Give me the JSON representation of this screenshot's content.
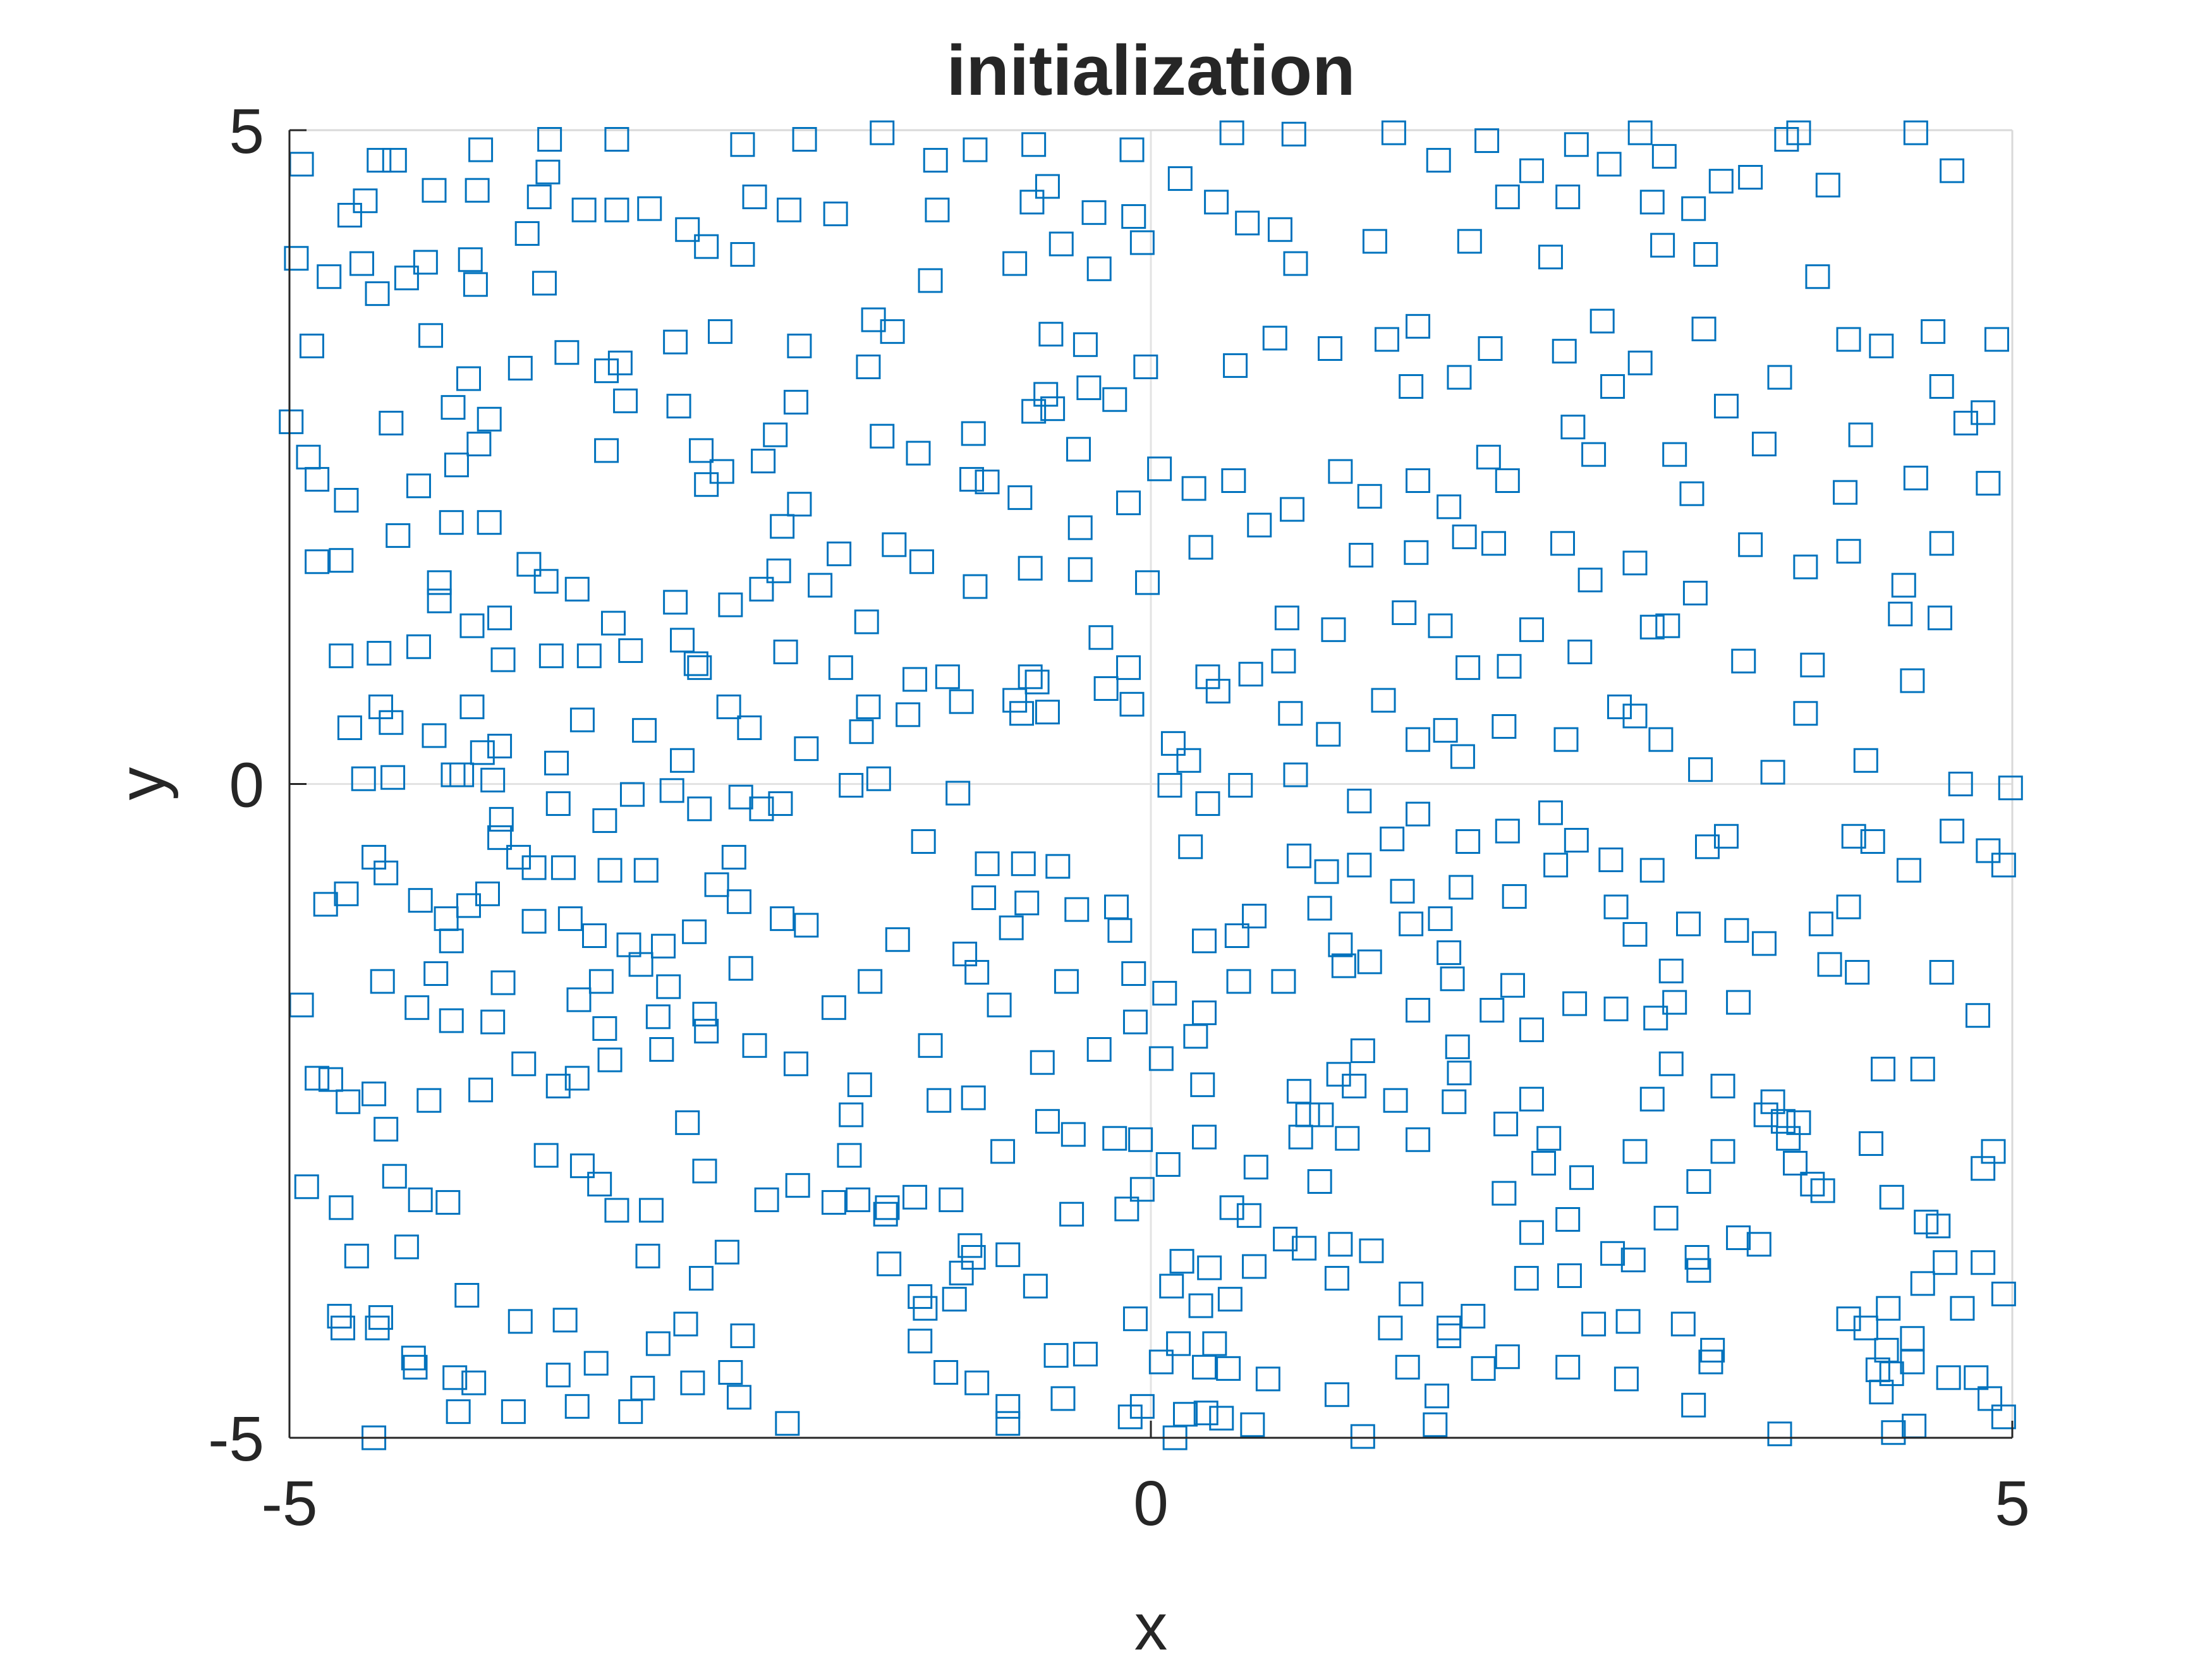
{
  "chart_data": {
    "type": "scatter",
    "title": "initialization",
    "x_label": "x",
    "y_label": "y",
    "color": "#0072BD",
    "marker": "square",
    "grid": true,
    "xlim": [
      -5,
      5
    ],
    "ylim": [
      -5,
      5
    ],
    "xticks": [
      -5,
      0,
      5
    ],
    "yticks": [
      -5,
      0,
      5
    ],
    "x": [
      -4.93,
      -4.48,
      -4.39,
      -3.89,
      -3.49,
      -3.1,
      -2.37,
      -2.01,
      -1.56,
      -1.25,
      -1.02,
      -0.68,
      -0.11,
      0.47,
      0.83,
      1.41,
      1.67,
      1.95,
      2.21,
      2.47,
      2.84,
      2.98,
      3.69,
      3.76,
      4.44,
      4.65,
      3.93,
      3.48,
      3.31,
      3.15,
      2.91,
      2.66,
      2.42,
      2.07,
      1.85,
      2.32,
      2.97,
      3.22,
      1.3,
      0.84,
      0.38,
      0.56,
      0.75,
      0.17,
      -0.1,
      -0.33,
      -0.6,
      -0.69,
      -0.79,
      -0.52,
      -0.3,
      -0.05,
      -1.24,
      -1.28,
      -1.83,
      -2.1,
      -2.3,
      -2.58,
      -2.37,
      -2.69,
      -2.91,
      -3.1,
      -3.29,
      -3.5,
      -3.55,
      -3.91,
      -4.16,
      -4.56,
      -4.65,
      -4.96,
      -4.77,
      -4.58,
      -4.32,
      -4.49,
      -4.21,
      -3.95,
      -3.92,
      -3.62,
      -3.52,
      -4.87,
      -4.99,
      -4.18,
      -3.96,
      -3.66,
      -3.39,
      -3.16,
      -3.08,
      -3.05,
      -2.76,
      -2.5,
      -2.04,
      -1.61,
      -1.5,
      -1.64,
      -2.06,
      -2.18,
      -2.74,
      -3.16,
      -3.84,
      -3.9,
      -4.05,
      -4.41,
      -4.89,
      -4.84,
      -4.67,
      -4.25,
      -4.03,
      -2.61,
      -2.49,
      -2.58,
      -2.25,
      -1.56,
      -1.35,
      -1.03,
      -1.04,
      -0.95,
      -0.76,
      -0.58,
      -0.38,
      -0.68,
      -0.57,
      -0.42,
      -0.61,
      -0.36,
      -0.21,
      -0.03,
      -0.13,
      0.05,
      0.25,
      0.48,
      0.49,
      0.72,
      1.04,
      1.37,
      1.51,
      1.55,
      1.79,
      1.97,
      2.4,
      2.62,
      2.68,
      2.84,
      3.21,
      3.34,
      3.65,
      3.87,
      4.05,
      4.24,
      4.54,
      4.91,
      4.73,
      4.59,
      4.83,
      4.86,
      4.44,
      4.03,
      4.12,
      3.56,
      3.04,
      2.57,
      2.45,
      2.07,
      1.96,
      1.55,
      1.1,
      1.27,
      0.82,
      0.63,
      0.29,
      -0.02,
      -0.41,
      -0.7,
      -0.41,
      -1.02,
      -1.33,
      -1.49,
      -1.81,
      -2.04,
      -2.14,
      -2.16,
      -2.26,
      -1.92,
      -1.65,
      -2.44,
      -2.76,
      -3.33,
      -3.51,
      -3.61,
      -3.84,
      -4.06,
      -4.37,
      -4.7,
      -4.84,
      -4.7,
      -4.48,
      -4.25,
      -4.13,
      -4.13,
      -3.94,
      -3.78,
      -3.76,
      -3.48,
      -3.26,
      -3.12,
      -3.02,
      -2.72,
      -2.64,
      -2.12,
      -1.8,
      -1.37,
      -1.18,
      -0.7,
      -0.66,
      -0.29,
      -0.13,
      -0.11,
      -0.26,
      -0.6,
      -0.79,
      -0.75,
      -1.1,
      -1.41,
      -1.64,
      -1.68,
      -2.0,
      -2.33,
      -2.45,
      -2.62,
      -2.72,
      -2.94,
      -3.3,
      -3.45,
      -3.78,
      -3.88,
      -3.94,
      -4.16,
      -4.41,
      -4.47,
      -4.65,
      -4.57,
      -4.4,
      -4.05,
      -4.0,
      -3.82,
      0.33,
      0.39,
      0.58,
      0.81,
      0.77,
      1.03,
      0.79,
      1.06,
      1.47,
      1.68,
      1.84,
      2.08,
      2.21,
      2.49,
      2.72,
      2.81,
      2.91,
      3.0,
      3.44,
      3.8,
      3.84,
      4.42,
      4.15,
      3.61,
      3.19,
      2.96,
      2.41,
      2.05,
      1.71,
      1.81,
      1.55,
      1.35,
      0.13,
      0.22,
      0.84,
      4.7,
      4.99,
      3.14,
      3.48,
      3.8,
      4.05,
      4.37,
      4.59,
      4.58,
      4.35,
      3.16,
      2.81,
      2.55,
      2.39,
      1.99,
      1.82,
      1.54,
      1.22,
      1.73,
      0.11,
      0.33,
      0.52,
      1.21,
      1.55,
      2.32,
      2.07,
      1.84,
      1.4,
      2.47,
      3.34,
      3.23,
      4.08,
      4.19,
      4.65,
      4.86,
      4.95,
      4.4,
      4.05,
      3.89,
      3.56,
      3.4,
      3.12,
      2.91,
      2.67,
      2.7,
      2.81,
      2.35,
      2.11,
      1.8,
      1.46,
      1.21,
      1.02,
      0.86,
      0.98,
      0.5,
      0.31,
      0.6,
      0.23,
      -0.54,
      -0.43,
      -0.18,
      -0.2,
      -0.74,
      -0.95,
      -0.72,
      -0.97,
      -0.81,
      -1.47,
      -1.32,
      -1.12,
      -1.58,
      -1.74,
      -2.15,
      -2.38,
      -2.26,
      -2.62,
      -2.78,
      -3.01,
      -3.17,
      -3.44,
      -3.77,
      -3.78,
      -3.67,
      -3.58,
      -3.85,
      -3.96,
      -4.09,
      -4.06,
      -4.24,
      -4.51,
      -4.44,
      -4.67,
      -4.79,
      -4.46,
      -4.93,
      -4.26,
      -4.06,
      -4.15,
      -3.76,
      -3.82,
      -3.58,
      -3.41,
      -3.14,
      -2.93,
      -3.37,
      -3.23,
      -3.03,
      -2.83,
      -2.65,
      -2.52,
      -2.42,
      -2.39,
      -2.14,
      -2.0,
      -2.38,
      -2.8,
      -2.96,
      -3.19,
      -3.32,
      -3.17,
      -2.86,
      -2.59,
      -2.58,
      -2.84,
      -3.14,
      -3.33,
      -3.44,
      -3.64,
      -3.89,
      -4.19,
      -4.51,
      -4.44,
      -4.66,
      -4.84,
      -4.76,
      -4.9,
      -4.7,
      -4.39,
      -4.24,
      -4.08,
      -4.32,
      -4.61,
      -4.71,
      -4.69,
      -4.49,
      -4.47,
      -4.28,
      -4.27,
      -4.04,
      -3.93,
      -3.7,
      -4.51,
      -4.02,
      -3.33,
      -3.02,
      -2.66,
      -2.95,
      -3.22,
      -3.44,
      -3.66,
      -3.4,
      -3.97,
      -2.7,
      -2.86,
      -2.37,
      -2.44,
      -2.39,
      -2.11,
      -2.61,
      -2.46,
      -2.92,
      -3.51,
      -3.3,
      -3.2,
      -3.1,
      -2.9,
      -2.69,
      -2.59,
      -2.23,
      -2.05,
      -1.84,
      -1.7,
      -1.75,
      -1.74,
      -1.69,
      -2.06,
      -2.3,
      -1.84,
      -1.63,
      -1.28,
      -1.08,
      -1.01,
      -0.88,
      -0.49,
      -0.1,
      -0.09,
      -0.3,
      -0.63,
      -1.03,
      -1.23,
      -0.6,
      -0.45,
      -0.21,
      -0.06,
      -0.86,
      -1.53,
      -1.37,
      -1.16,
      -1.54,
      -1.52,
      -1.34,
      -1.31,
      -1.14,
      -1.05,
      -1.03,
      -0.83,
      -1.1,
      -0.67,
      -0.46,
      -0.14,
      -0.05,
      -0.09,
      -0.38,
      -0.55,
      -1.34,
      -1.19,
      -1.01,
      -0.83,
      -0.83,
      -0.51,
      -0.05,
      -0.12,
      0.06,
      0.14,
      0.2,
      0.32,
      0.41,
      0.59,
      0.31,
      0.45,
      0.68,
      0.37,
      0.16,
      0.29,
      0.46,
      0.12,
      0.18,
      0.34,
      0.6,
      0.47,
      0.57,
      0.78,
      0.89,
      1.1,
      1.28,
      1.08,
      1.51,
      1.39,
      1.73,
      1.87,
      1.73,
      1.93,
      2.07,
      1.49,
      1.66,
      1.65,
      1.08,
      1.23,
      2.42,
      2.57,
      2.77,
      2.76,
      3.09,
      3.15,
      3.26,
      3.25,
      3.65,
      2.68,
      2.8,
      3.17,
      3.18,
      3.41,
      3.53,
      2.99,
      2.42,
      2.21,
      2.18,
      2.43,
      2.05,
      2.28,
      2.5,
      2.81,
      3.18,
      3.32,
      2.91,
      3.02,
      3.32,
      3.57,
      3.61,
      3.67,
      3.76,
      3.7,
      3.74,
      3.84,
      3.9,
      4.18,
      4.3,
      4.5,
      4.57,
      4.61,
      4.48,
      4.83,
      4.95,
      4.71,
      4.05,
      4.28,
      4.15,
      4.27,
      4.42,
      4.42,
      4.3,
      4.22,
      4.24,
      4.63,
      4.79,
      4.87,
      4.95,
      4.43,
      4.31,
      4.25,
      4.48,
      4.8,
      4.59,
      4.89,
      4.83,
      3.94,
      4.1,
      3.41,
      3.04,
      3.02,
      2.93,
      2.7,
      2.46,
      2.21,
      1.98,
      2.1,
      1.55,
      1.75,
      1.73,
      1.68,
      1.51,
      1.27,
      1.1,
      1.12,
      0.77,
      0.51,
      0.31,
      0.08,
      0.26,
      0.06,
      0.3,
      0.86,
      0.99,
      0.91,
      1.09,
      1.23,
      1.18,
      1.42,
      1.79,
      1.78,
      1.76,
      2.06,
      2.21,
      2.31,
      1.55,
      1.14,
      0.87,
      0.98,
      0.61,
      0.31,
      0.1
    ],
    "values": [
      4.74,
      4.77,
      4.77,
      4.85,
      4.93,
      4.93,
      4.89,
      4.93,
      4.98,
      4.77,
      4.85,
      4.89,
      4.85,
      4.98,
      4.97,
      4.98,
      4.77,
      4.92,
      4.69,
      4.89,
      4.98,
      4.8,
      4.93,
      4.98,
      4.98,
      4.69,
      4.58,
      4.64,
      4.61,
      4.4,
      4.45,
      4.74,
      4.49,
      4.49,
      4.15,
      4.03,
      4.12,
      4.05,
      4.15,
      3.98,
      4.45,
      4.29,
      4.24,
      4.63,
      4.34,
      4.37,
      4.57,
      4.45,
      3.98,
      4.13,
      3.94,
      4.14,
      4.39,
      3.85,
      4.36,
      4.39,
      4.49,
      4.11,
      4.05,
      4.24,
      4.4,
      4.39,
      4.39,
      4.68,
      4.49,
      4.54,
      4.54,
      4.46,
      4.35,
      4.02,
      3.88,
      3.98,
      3.87,
      3.75,
      3.99,
      4.01,
      3.82,
      4.21,
      3.83,
      3.35,
      2.77,
      3.43,
      3.1,
      3.18,
      3.3,
      3.16,
      3.22,
      2.93,
      3.38,
      3.46,
      3.35,
      3.55,
      3.46,
      3.19,
      2.92,
      2.67,
      2.89,
      2.55,
      2.79,
      2.6,
      2.88,
      2.76,
      2.5,
      2.33,
      2.17,
      2.28,
      2.44,
      2.55,
      2.39,
      2.29,
      2.47,
      2.66,
      2.53,
      2.68,
      2.33,
      2.31,
      2.19,
      3.44,
      3.36,
      2.85,
      2.87,
      2.56,
      2.98,
      3.03,
      2.94,
      3.19,
      2.15,
      2.41,
      2.26,
      2.32,
      3.2,
      3.41,
      3.33,
      3.4,
      3.04,
      3.5,
      3.11,
      3.33,
      3.31,
      3.54,
      3.04,
      3.22,
      3.48,
      2.89,
      3.11,
      3.88,
      3.4,
      3.35,
      3.46,
      3.4,
      2.76,
      3.04,
      2.84,
      2.3,
      2.34,
      2.23,
      2.67,
      2.6,
      2.52,
      2.52,
      2.73,
      2.32,
      2.5,
      2.32,
      2.39,
      2.2,
      2.1,
      1.98,
      1.81,
      1.54,
      1.96,
      1.65,
      1.64,
      1.51,
      1.7,
      1.83,
      1.76,
      2.14,
      1.97,
      1.63,
      1.49,
      1.52,
      1.24,
      1.37,
      1.39,
      1.49,
      1.55,
      1.68,
      2.0,
      2.0,
      1.9,
      1.71,
      1.7,
      0.98,
      1.0,
      1.05,
      1.54,
      1.4,
      1.21,
      1.27,
      0.95,
      0.98,
      0.98,
      1.23,
      1.02,
      1.1,
      0.92,
      1.01,
      0.89,
      0.8,
      0.82,
      0.82,
      0.78,
      1.12,
      0.89,
      0.61,
      0.73,
      0.55,
      0.64,
      0.54,
      0.63,
      0.53,
      0.59,
      0.4,
      0.27,
      0.43,
      0.59,
      0.89,
      0.18,
      0.41,
      0.49,
      0.16,
      0.29,
      0.24,
      0.59,
      0.37,
      0.47,
      0.59,
      0.43,
      0.04,
      0.05,
      0.07,
      0.07,
      0.03,
      0.82,
      0.71,
      0.84,
      0.54,
      0.94,
      0.38,
      1.27,
      1.18,
      1.31,
      1.21,
      0.89,
      0.9,
      1.18,
      1.01,
      0.59,
      0.52,
      1.2,
      1.21,
      0.94,
      0.54,
      0.91,
      0.79,
      0.18,
      0.09,
      0.11,
      0.34,
      0.34,
      0.44,
      0.41,
      0.21,
      0.34,
      0.64,
      0.31,
      0.18,
      0.07,
      0.0,
      -0.03,
      2.22,
      1.83,
      1.66,
      1.78,
      1.52,
      1.84,
      1.27,
      1.3,
      1.46,
      1.69,
      1.56,
      1.84,
      1.84,
      1.89,
      1.77,
      1.75,
      2.12,
      -0.01,
      -0.15,
      -0.01,
      -0.13,
      -0.23,
      -0.22,
      -0.36,
      -0.44,
      -0.42,
      -0.43,
      -0.4,
      -0.48,
      -0.4,
      -0.44,
      -0.36,
      -0.51,
      -0.62,
      -0.66,
      -0.94,
      -1.07,
      -1.22,
      -1.12,
      -1.07,
      -0.66,
      -0.58,
      -0.94,
      -1.15,
      -0.62,
      -0.86,
      -0.79,
      -0.82,
      -0.62,
      -0.67,
      -0.55,
      -0.95,
      -1.16,
      -1.2,
      -1.01,
      -0.48,
      -0.63,
      -0.96,
      -1.12,
      -0.94,
      -0.61,
      -0.61,
      -0.91,
      -0.87,
      -1.1,
      -1.19,
      -0.44,
      -0.07,
      0.04,
      -0.01,
      -0.15,
      -0.1,
      -0.19,
      -0.19,
      -0.05,
      -0.08,
      -0.28,
      -0.15,
      -0.27,
      -0.41,
      -0.56,
      -0.64,
      -0.84,
      -0.93,
      -1.03,
      -1.2,
      -0.89,
      -0.56,
      -0.68,
      -0.84,
      -0.92,
      -1.51,
      -1.69,
      -1.71,
      -1.81,
      -1.45,
      -1.52,
      -1.82,
      -1.05,
      -0.64,
      -0.66,
      -0.66,
      -1.03,
      -1.16,
      -1.23,
      -1.24,
      -1.13,
      -0.77,
      -0.56,
      -0.9,
      -1.03,
      -1.08,
      -1.41,
      -1.55,
      -1.38,
      -1.51,
      -1.65,
      -1.87,
      -1.78,
      -1.76,
      -1.89,
      -2.03,
      -2.11,
      -2.25,
      -2.31,
      -2.14,
      -2.34,
      -2.42,
      -2.37,
      -2.64,
      -2.43,
      -2.25,
      -2.26,
      -3.08,
      -3.24,
      -3.0,
      -3.18,
      -3.2,
      -3.54,
      -3.61,
      -4.07,
      -4.16,
      -4.16,
      -4.08,
      -4.39,
      -4.46,
      -4.54,
      -4.58,
      -4.8,
      -5.0,
      -4.8,
      -4.76,
      -4.8,
      -4.58,
      -4.62,
      -4.43,
      -4.52,
      -4.11,
      -4.1,
      -3.91,
      -4.13,
      -4.28,
      -4.22,
      -4.5,
      -4.69,
      -4.89,
      -3.78,
      -3.58,
      -3.61,
      -2.84,
      -2.92,
      -3.06,
      -3.26,
      -3.26,
      -2.59,
      -2.96,
      -3.18,
      -3.07,
      -3.2,
      -3.18,
      -2.84,
      -2.53,
      -2.3,
      -2.14,
      -2.0,
      -1.71,
      -1.51,
      -2.0,
      -1.3,
      -1.44,
      -1.69,
      -1.51,
      -1.45,
      -1.82,
      -2.03,
      -2.13,
      -2.4,
      -2.42,
      -2.58,
      -2.68,
      -2.71,
      -2.72,
      -2.81,
      -3.24,
      -3.16,
      -3.18,
      -3.29,
      -3.67,
      -3.92,
      -4.01,
      -3.94,
      -3.53,
      -3.62,
      -3.6,
      -3.74,
      -3.84,
      -3.29,
      -3.25,
      -3.1,
      -4.09,
      -4.36,
      -4.37,
      -4.26,
      -4.5,
      -4.58,
      -4.76,
      -4.89,
      -4.7,
      -4.76,
      -4.84,
      -4.42,
      -5.0,
      -4.82,
      -4.81,
      -4.85,
      -4.9,
      -4.46,
      -4.47,
      -4.55,
      -4.28,
      -4.28,
      -3.99,
      -3.94,
      -3.84,
      -3.65,
      -3.7,
      -3.69,
      -3.24,
      -3.3,
      -3.48,
      -3.55,
      -3.52,
      -3.57,
      -3.78,
      -3.9,
      -4.16,
      -4.16,
      -4.07,
      -4.22,
      -4.47,
      -4.38,
      -4.46,
      -4.68,
      -4.9,
      -4.67,
      -4.99,
      -4.46,
      -4.13,
      -4.11,
      -4.55,
      -4.13,
      -4.75,
      -4.33,
      -4.42,
      -4.97,
      -3.59,
      -3.64,
      -3.62,
      -3.72,
      -3.47,
      -3.52,
      -3.32,
      -3.33,
      -3.43,
      -3.78,
      -3.76,
      -3.13,
      -2.9,
      -3.01,
      -2.81,
      -3.04,
      -2.81,
      -2.41,
      -2.14,
      -2.31,
      -2.53,
      -2.43,
      -2.58,
      -2.59,
      -2.71,
      -2.9,
      -3.06,
      -3.11,
      -2.75,
      -3.16,
      -3.35,
      -3.38,
      -3.66,
      -3.82,
      -3.66,
      -3.9,
      -4.01,
      -4.09,
      -4.01,
      -4.16,
      -4.33,
      -4.24,
      -4.42,
      -4.51,
      -4.48,
      -4.65,
      -4.54,
      -4.54,
      -4.7,
      -4.84,
      -4.91,
      -4.96,
      -2.18,
      -2.18,
      -1.77,
      -1.44,
      -2.81,
      -2.94,
      -1.38,
      -1.44,
      -1.67,
      -1.67,
      -1.43,
      -1.79,
      -1.72,
      -1.68,
      -1.88,
      -1.73,
      -1.54,
      -1.73,
      -1.49,
      -1.29,
      -1.03,
      -1.07,
      -1.36,
      -1.23,
      -1.39,
      -1.51,
      -1.51,
      -1.75,
      -1.6,
      -1.93,
      -2.1,
      -2.3,
      -2.35,
      -2.53,
      -2.53,
      -2.22,
      -2.04,
      -2.31,
      -2.42,
      -2.21,
      -2.01,
      -2.43,
      -2.6,
      -2.41,
      -2.71,
      -2.72,
      -2.71,
      -2.7,
      -3.04,
      -2.93,
      -2.7,
      -2.91
    ]
  }
}
